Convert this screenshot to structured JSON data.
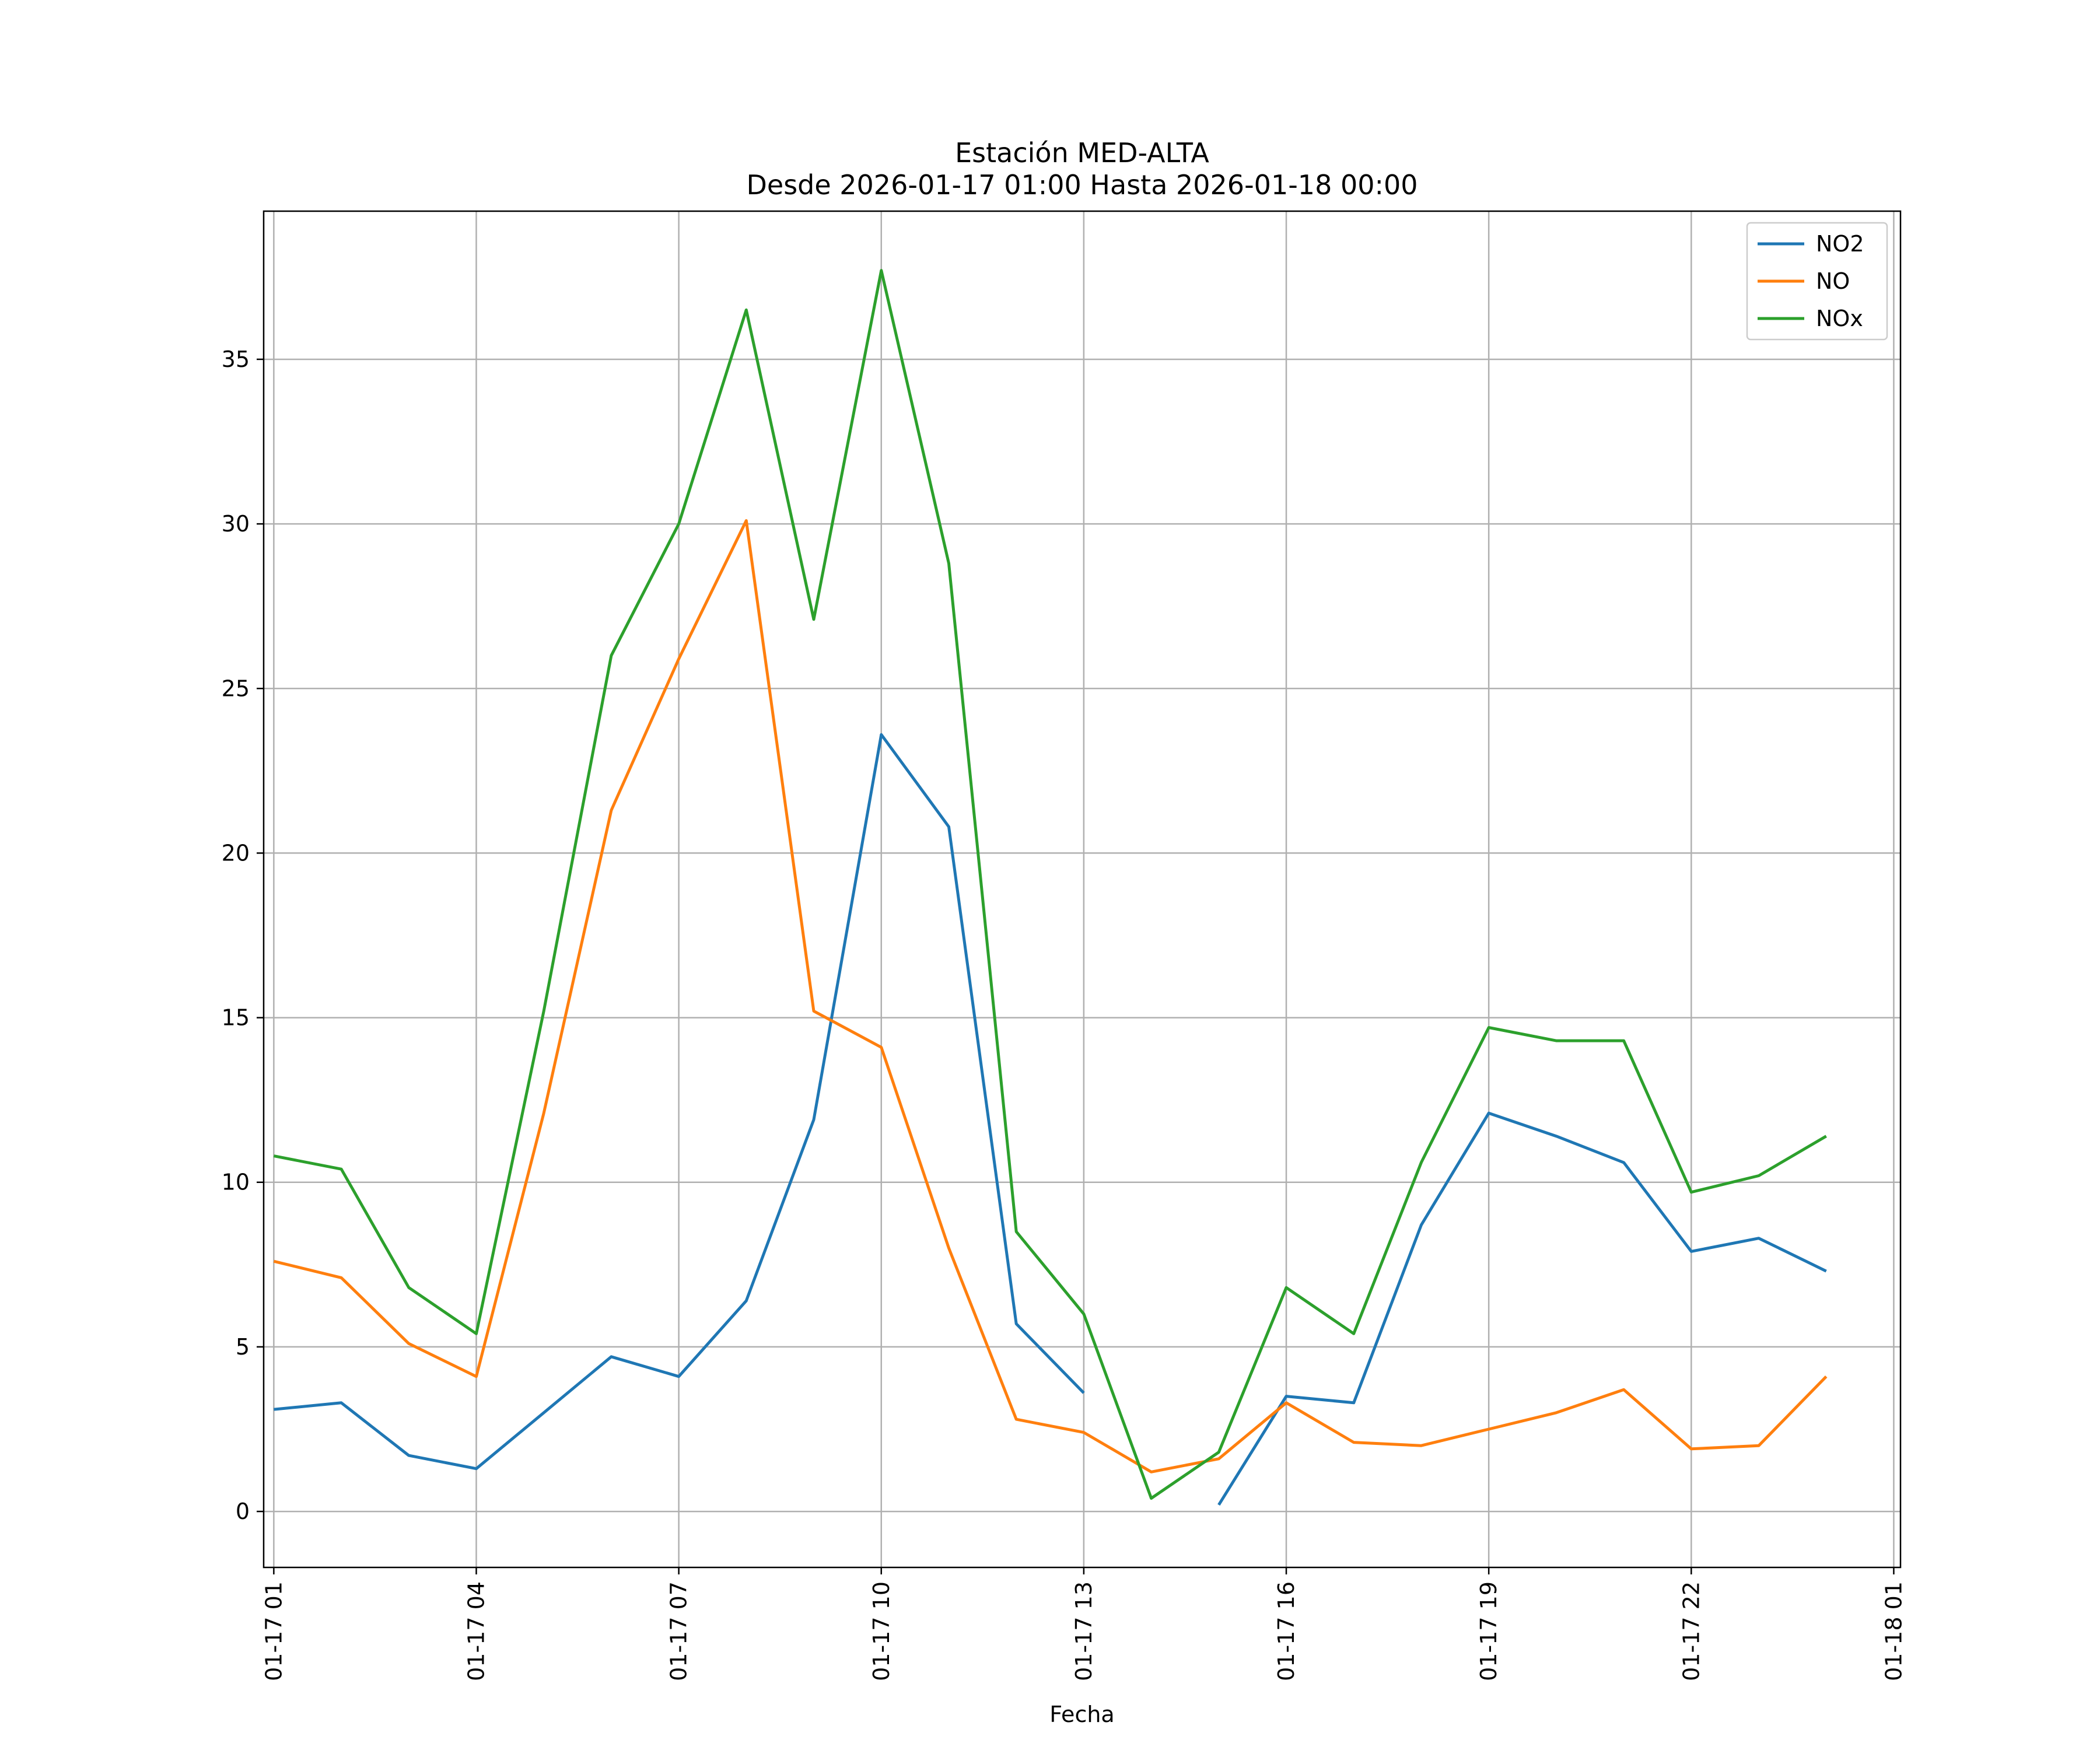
{
  "chart_data": {
    "type": "line",
    "title_line1": "Estación MED-ALTA",
    "title_line2": "Desde 2026-01-17 01:00 Hasta 2026-01-18 00:00",
    "xlabel": "Fecha",
    "ylabel": "",
    "x": [
      "01-17 01",
      "01-17 02",
      "01-17 03",
      "01-17 04",
      "01-17 05",
      "01-17 06",
      "01-17 07",
      "01-17 08",
      "01-17 09",
      "01-17 10",
      "01-17 11",
      "01-17 12",
      "01-17 13",
      "01-17 14",
      "01-17 15",
      "01-17 16",
      "01-17 17",
      "01-17 18",
      "01-17 19",
      "01-17 20",
      "01-17 21",
      "01-17 22",
      "01-17 23",
      "01-18 00"
    ],
    "x_ticks": [
      "01-17 01",
      "01-17 04",
      "01-17 07",
      "01-17 10",
      "01-17 13",
      "01-17 16",
      "01-17 19",
      "01-17 22",
      "01-18 01"
    ],
    "xlim_hours": [
      -0.15,
      24.1
    ],
    "y_ticks": [
      0,
      5,
      10,
      15,
      20,
      25,
      30,
      35
    ],
    "ylim": [
      -1.7,
      39.5
    ],
    "grid": true,
    "legend_position": "top-right",
    "series": [
      {
        "name": "NO2",
        "color": "#1f77b4",
        "values": [
          3.1,
          3.3,
          1.7,
          1.3,
          3.0,
          4.7,
          4.1,
          6.4,
          11.9,
          23.6,
          20.8,
          5.7,
          3.6,
          null,
          0.2,
          3.5,
          3.3,
          8.7,
          12.1,
          11.4,
          10.6,
          7.9,
          8.3,
          7.3
        ]
      },
      {
        "name": "NO",
        "color": "#ff7f0e",
        "values": [
          7.6,
          7.1,
          5.1,
          4.1,
          12.1,
          21.3,
          25.9,
          30.1,
          15.2,
          14.1,
          8.0,
          2.8,
          2.4,
          1.2,
          1.6,
          3.3,
          2.1,
          2.0,
          2.5,
          3.0,
          3.7,
          1.9,
          2.0,
          4.1
        ]
      },
      {
        "name": "NOx",
        "color": "#2ca02c",
        "values": [
          10.8,
          10.4,
          6.8,
          5.4,
          15.2,
          26.0,
          30.0,
          36.5,
          27.1,
          37.7,
          28.8,
          8.5,
          6.0,
          0.4,
          1.8,
          6.8,
          5.4,
          10.6,
          14.7,
          14.3,
          14.3,
          9.7,
          10.2,
          11.4
        ]
      }
    ]
  }
}
